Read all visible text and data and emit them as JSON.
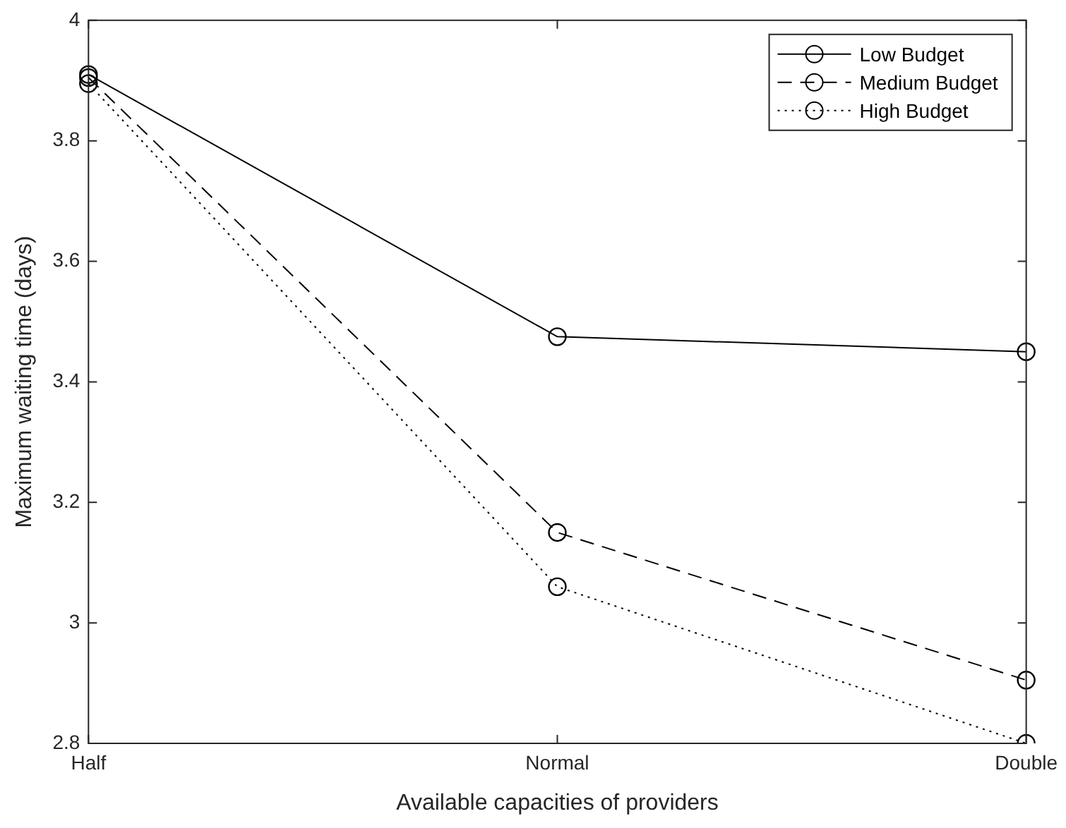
{
  "chart_data": {
    "type": "line",
    "xlabel": "Available capacities of providers",
    "ylabel": "Maximum waiting time (days)",
    "categories": [
      "Half",
      "Normal",
      "Double"
    ],
    "series": [
      {
        "name": "Low Budget",
        "color": "#000000",
        "line_style": "solid",
        "values": [
          3.91,
          3.475,
          3.45
        ]
      },
      {
        "name": "Medium Budget",
        "color": "#000000",
        "line_style": "dashed",
        "values": [
          3.905,
          3.15,
          2.905
        ]
      },
      {
        "name": "High Budget",
        "color": "#000000",
        "line_style": "dotted",
        "values": [
          3.895,
          3.06,
          2.8
        ]
      }
    ],
    "ylim": [
      2.8,
      4
    ],
    "yticks": [
      2.8,
      3,
      3.2,
      3.4,
      3.6,
      3.8,
      4
    ],
    "grid": false,
    "legend": "top right",
    "marker": "circle"
  }
}
